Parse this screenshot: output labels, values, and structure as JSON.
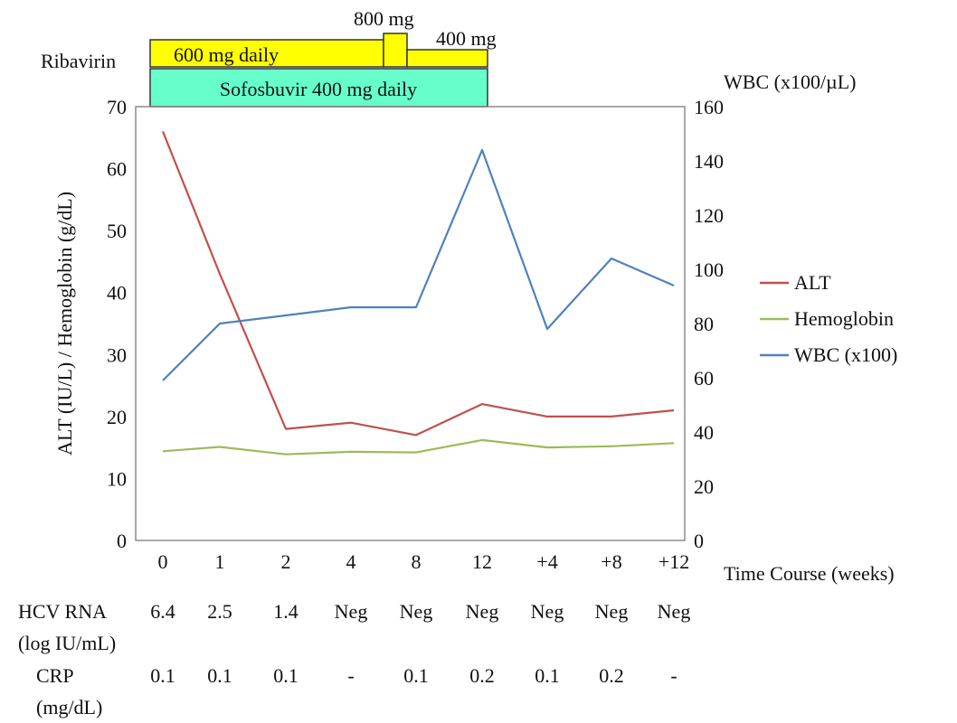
{
  "chart_data": {
    "type": "line",
    "categories": [
      "0",
      "1",
      "2",
      "4",
      "8",
      "12",
      "+4",
      "+8",
      "+12"
    ],
    "xlabel": "Time Course (weeks)",
    "ylabel": "ALT (IU/L) / Hemoglobin (g/dL)",
    "y2label": "WBC (x100/µL)",
    "ylim": [
      0,
      70
    ],
    "y2lim": [
      0,
      160
    ],
    "yticks": [
      "0",
      "10",
      "20",
      "30",
      "40",
      "50",
      "60",
      "70"
    ],
    "y2ticks": [
      "0",
      "20",
      "40",
      "60",
      "80",
      "100",
      "120",
      "140",
      "160"
    ],
    "grid": false,
    "legend_position": "right",
    "series": [
      {
        "name": "ALT",
        "axis": "left",
        "color": "#c0504d",
        "values": [
          66,
          43,
          18,
          19,
          17,
          22,
          20,
          20,
          21
        ]
      },
      {
        "name": "Hemoglobin",
        "axis": "left",
        "color": "#9bbb59",
        "values": [
          14.4,
          15.1,
          13.9,
          14.3,
          14.2,
          16.2,
          15.0,
          15.2,
          15.7
        ]
      },
      {
        "name": "WBC (x100)",
        "axis": "right",
        "color": "#4f81bd",
        "values": [
          59,
          80,
          83,
          86,
          86,
          144,
          78,
          104,
          94
        ]
      }
    ],
    "dosing": {
      "ribavirin_label": "Ribavirin",
      "ribavirin_color": "#ffff00",
      "ribavirin_segments": [
        {
          "label": "600 mg daily",
          "from": "0",
          "to": "8 (part)"
        },
        {
          "label": "800 mg",
          "from": "8",
          "to": "8 (part)"
        },
        {
          "label": "400 mg",
          "from": "8 (part)",
          "to": "12"
        }
      ],
      "sofosbuvir_label": "Sofosbuvir 400 mg daily",
      "sofosbuvir_color": "#66ffcc"
    },
    "table": {
      "rows": [
        {
          "label_line1": "HCV RNA",
          "label_line2": "(log IU/mL)",
          "values": [
            "6.4",
            "2.5",
            "1.4",
            "Neg",
            "Neg",
            "Neg",
            "Neg",
            "Neg",
            "Neg"
          ]
        },
        {
          "label_line1": "CRP",
          "label_line2": "(mg/dL)",
          "values": [
            "0.1",
            "0.1",
            "0.1",
            "-",
            "0.1",
            "0.2",
            "0.1",
            "0.2",
            "-"
          ]
        }
      ]
    }
  }
}
